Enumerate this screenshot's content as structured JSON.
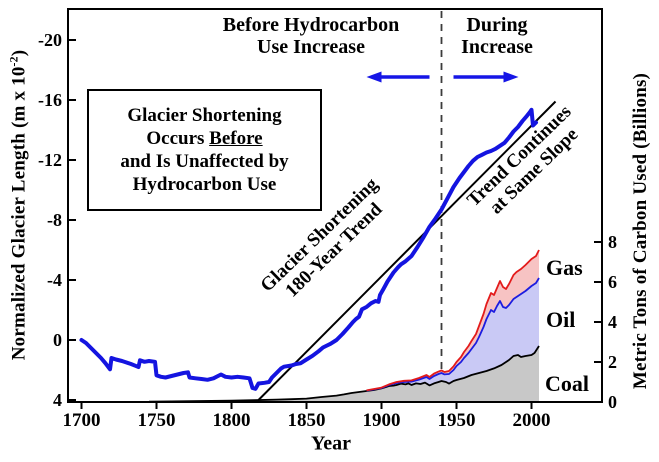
{
  "figure": {
    "xlabel": "Year",
    "left_axis_label_main": "Normalized Glacier Length (m x 10",
    "left_axis_label_sup": "-2",
    "left_axis_label_close": ")",
    "right_axis_label": "Metric Tons of Carbon Used (Billions)",
    "annotations": {
      "before_line1": "Before Hydrocarbon",
      "before_line2": "Use Increase",
      "during_line1": "During",
      "during_line2": "Increase",
      "box_line1": "Glacier Shortening",
      "box_line2_pre": "Occurs ",
      "box_line2_underlined": "Before",
      "box_line3": "and Is Unaffected by",
      "box_line4": "Hydrocarbon Use",
      "trend_label_line1": "Glacier Shortening",
      "trend_label_line2": "180-Year Trend",
      "continues_label_line1": "Trend Continues",
      "continues_label_line2": "at Same Slope",
      "gas_label": "Gas",
      "oil_label": "Oil",
      "coal_label": "Coal"
    }
  },
  "chart_data": {
    "type": "line+stacked-area",
    "xlabel": "Year",
    "xlim": [
      1691,
      2047
    ],
    "x_ticks": [
      1700,
      1750,
      1800,
      1850,
      1900,
      1950,
      2000
    ],
    "left_axis": {
      "label": "Normalized Glacier Length (m x 10^-2)",
      "ticks": [
        -20,
        -16,
        -12,
        -8,
        -4,
        0,
        4
      ],
      "inverted": true,
      "ylim_bottom_to_top": [
        4,
        -22
      ]
    },
    "right_axis": {
      "label": "Metric Tons of Carbon Used (Billions)",
      "ticks": [
        0,
        2,
        4,
        6,
        8
      ],
      "ylim": [
        0,
        8
      ]
    },
    "divider_year": 1940,
    "glacier_series": {
      "name": "Normalized glacier length",
      "points": [
        [
          1700,
          0.0
        ],
        [
          1703,
          0.2
        ],
        [
          1706,
          0.5
        ],
        [
          1710,
          0.9
        ],
        [
          1713,
          1.2
        ],
        [
          1716,
          1.55
        ],
        [
          1719,
          1.95
        ],
        [
          1720,
          1.2
        ],
        [
          1723,
          1.3
        ],
        [
          1727,
          1.4
        ],
        [
          1730,
          1.5
        ],
        [
          1733,
          1.6
        ],
        [
          1736,
          1.72
        ],
        [
          1738,
          1.8
        ],
        [
          1739,
          1.35
        ],
        [
          1742,
          1.45
        ],
        [
          1745,
          1.4
        ],
        [
          1749,
          1.45
        ],
        [
          1750,
          2.35
        ],
        [
          1753,
          2.45
        ],
        [
          1756,
          2.5
        ],
        [
          1760,
          2.4
        ],
        [
          1764,
          2.3
        ],
        [
          1768,
          2.2
        ],
        [
          1771,
          2.15
        ],
        [
          1772,
          2.5
        ],
        [
          1776,
          2.55
        ],
        [
          1780,
          2.6
        ],
        [
          1784,
          2.65
        ],
        [
          1788,
          2.55
        ],
        [
          1791,
          2.4
        ],
        [
          1793,
          2.3
        ],
        [
          1796,
          2.45
        ],
        [
          1800,
          2.5
        ],
        [
          1804,
          2.45
        ],
        [
          1808,
          2.5
        ],
        [
          1812,
          2.55
        ],
        [
          1814,
          3.2
        ],
        [
          1816,
          3.25
        ],
        [
          1818,
          2.9
        ],
        [
          1822,
          2.85
        ],
        [
          1825,
          2.8
        ],
        [
          1827,
          2.5
        ],
        [
          1830,
          2.2
        ],
        [
          1833,
          1.9
        ],
        [
          1835,
          1.78
        ],
        [
          1840,
          1.7
        ],
        [
          1843,
          1.6
        ],
        [
          1846,
          1.55
        ],
        [
          1850,
          1.3
        ],
        [
          1854,
          1.05
        ],
        [
          1858,
          0.75
        ],
        [
          1861,
          0.5
        ],
        [
          1863,
          0.4
        ],
        [
          1866,
          0.25
        ],
        [
          1870,
          0.0
        ],
        [
          1874,
          -0.4
        ],
        [
          1878,
          -0.85
        ],
        [
          1881,
          -1.2
        ],
        [
          1883,
          -1.4
        ],
        [
          1885,
          -1.55
        ],
        [
          1887,
          -2.05
        ],
        [
          1890,
          -2.2
        ],
        [
          1893,
          -2.45
        ],
        [
          1896,
          -2.6
        ],
        [
          1898,
          -2.55
        ],
        [
          1899,
          -3.0
        ],
        [
          1901,
          -3.35
        ],
        [
          1904,
          -3.9
        ],
        [
          1908,
          -4.5
        ],
        [
          1911,
          -4.85
        ],
        [
          1913,
          -5.05
        ],
        [
          1916,
          -5.25
        ],
        [
          1920,
          -5.6
        ],
        [
          1924,
          -6.2
        ],
        [
          1928,
          -6.85
        ],
        [
          1932,
          -7.55
        ],
        [
          1936,
          -8.1
        ],
        [
          1940,
          -8.7
        ],
        [
          1944,
          -9.45
        ],
        [
          1948,
          -10.2
        ],
        [
          1952,
          -10.8
        ],
        [
          1955,
          -11.2
        ],
        [
          1958,
          -11.6
        ],
        [
          1961,
          -11.95
        ],
        [
          1964,
          -12.2
        ],
        [
          1967,
          -12.35
        ],
        [
          1970,
          -12.5
        ],
        [
          1973,
          -12.6
        ],
        [
          1976,
          -12.75
        ],
        [
          1979,
          -12.95
        ],
        [
          1982,
          -13.15
        ],
        [
          1985,
          -13.5
        ],
        [
          1988,
          -13.9
        ],
        [
          1991,
          -14.2
        ],
        [
          1994,
          -14.6
        ],
        [
          1997,
          -14.95
        ],
        [
          1999,
          -15.2
        ],
        [
          2000,
          -15.35
        ],
        [
          2001,
          -14.3
        ],
        [
          2003,
          -14.5
        ]
      ]
    },
    "trend_line": {
      "name": "Glacier shortening 180-year trend",
      "points": [
        [
          1818,
          4.0
        ],
        [
          2016,
          -15.9
        ]
      ]
    },
    "stacked_carbon": {
      "stacked": true,
      "note": "values are cumulative tops as plotted, billions of metric tons of carbon",
      "coal_top": [
        [
          1745,
          0.02
        ],
        [
          1760,
          0.03
        ],
        [
          1780,
          0.05
        ],
        [
          1800,
          0.07
        ],
        [
          1815,
          0.09
        ],
        [
          1830,
          0.12
        ],
        [
          1840,
          0.14
        ],
        [
          1850,
          0.17
        ],
        [
          1860,
          0.25
        ],
        [
          1870,
          0.32
        ],
        [
          1875,
          0.38
        ],
        [
          1880,
          0.45
        ],
        [
          1885,
          0.5
        ],
        [
          1890,
          0.55
        ],
        [
          1895,
          0.6
        ],
        [
          1900,
          0.68
        ],
        [
          1903,
          0.75
        ],
        [
          1905,
          0.8
        ],
        [
          1908,
          0.82
        ],
        [
          1910,
          0.85
        ],
        [
          1913,
          0.92
        ],
        [
          1916,
          0.88
        ],
        [
          1918,
          0.93
        ],
        [
          1920,
          0.85
        ],
        [
          1923,
          0.93
        ],
        [
          1926,
          0.9
        ],
        [
          1929,
          0.97
        ],
        [
          1932,
          0.83
        ],
        [
          1935,
          0.93
        ],
        [
          1938,
          1.0
        ],
        [
          1940,
          1.05
        ],
        [
          1943,
          1.0
        ],
        [
          1945,
          0.92
        ],
        [
          1948,
          1.05
        ],
        [
          1950,
          1.1
        ],
        [
          1955,
          1.2
        ],
        [
          1960,
          1.35
        ],
        [
          1965,
          1.45
        ],
        [
          1970,
          1.55
        ],
        [
          1975,
          1.68
        ],
        [
          1980,
          1.85
        ],
        [
          1985,
          2.1
        ],
        [
          1988,
          2.3
        ],
        [
          1991,
          2.35
        ],
        [
          1993,
          2.25
        ],
        [
          1996,
          2.3
        ],
        [
          2000,
          2.35
        ],
        [
          2002,
          2.45
        ],
        [
          2005,
          2.8
        ]
      ],
      "coal_plus_oil_top": [
        [
          1890,
          0.57
        ],
        [
          1895,
          0.63
        ],
        [
          1900,
          0.7
        ],
        [
          1905,
          0.85
        ],
        [
          1910,
          0.95
        ],
        [
          1915,
          1.0
        ],
        [
          1920,
          1.02
        ],
        [
          1925,
          1.12
        ],
        [
          1930,
          1.25
        ],
        [
          1932,
          1.15
        ],
        [
          1935,
          1.3
        ],
        [
          1938,
          1.4
        ],
        [
          1940,
          1.45
        ],
        [
          1942,
          1.38
        ],
        [
          1945,
          1.4
        ],
        [
          1948,
          1.6
        ],
        [
          1950,
          1.8
        ],
        [
          1953,
          2.0
        ],
        [
          1955,
          2.2
        ],
        [
          1958,
          2.45
        ],
        [
          1960,
          2.65
        ],
        [
          1963,
          2.95
        ],
        [
          1965,
          3.25
        ],
        [
          1968,
          3.75
        ],
        [
          1970,
          4.15
        ],
        [
          1973,
          4.6
        ],
        [
          1975,
          4.5
        ],
        [
          1977,
          4.8
        ],
        [
          1979,
          5.05
        ],
        [
          1981,
          4.75
        ],
        [
          1983,
          4.7
        ],
        [
          1985,
          4.85
        ],
        [
          1988,
          5.15
        ],
        [
          1990,
          5.25
        ],
        [
          1993,
          5.4
        ],
        [
          1996,
          5.55
        ],
        [
          2000,
          5.8
        ],
        [
          2003,
          5.95
        ],
        [
          2005,
          6.2
        ]
      ],
      "total_with_gas_top": [
        [
          1890,
          0.58
        ],
        [
          1895,
          0.65
        ],
        [
          1900,
          0.72
        ],
        [
          1905,
          0.88
        ],
        [
          1910,
          1.0
        ],
        [
          1915,
          1.06
        ],
        [
          1920,
          1.08
        ],
        [
          1925,
          1.2
        ],
        [
          1930,
          1.35
        ],
        [
          1932,
          1.25
        ],
        [
          1935,
          1.42
        ],
        [
          1938,
          1.52
        ],
        [
          1940,
          1.58
        ],
        [
          1942,
          1.5
        ],
        [
          1945,
          1.55
        ],
        [
          1948,
          1.78
        ],
        [
          1950,
          2.0
        ],
        [
          1953,
          2.25
        ],
        [
          1955,
          2.5
        ],
        [
          1958,
          2.8
        ],
        [
          1960,
          3.05
        ],
        [
          1963,
          3.4
        ],
        [
          1965,
          3.8
        ],
        [
          1968,
          4.4
        ],
        [
          1970,
          4.9
        ],
        [
          1973,
          5.45
        ],
        [
          1975,
          5.35
        ],
        [
          1977,
          5.7
        ],
        [
          1979,
          6.05
        ],
        [
          1981,
          5.75
        ],
        [
          1983,
          5.65
        ],
        [
          1985,
          5.9
        ],
        [
          1988,
          6.35
        ],
        [
          1990,
          6.5
        ],
        [
          1993,
          6.65
        ],
        [
          1996,
          6.85
        ],
        [
          2000,
          7.15
        ],
        [
          2003,
          7.3
        ],
        [
          2005,
          7.6
        ]
      ]
    },
    "colors": {
      "glacier_line": "#1414e0",
      "trend_line": "#000000",
      "divider": "#3c3c3c",
      "arrow": "#1616e6",
      "coal_fill": "#c8c8c8",
      "coal_line": "#000000",
      "oil_fill": "#c9c9f5",
      "oil_line": "#1c1ce0",
      "gas_fill": "#f7c3c3",
      "gas_line": "#e31b1b"
    }
  }
}
